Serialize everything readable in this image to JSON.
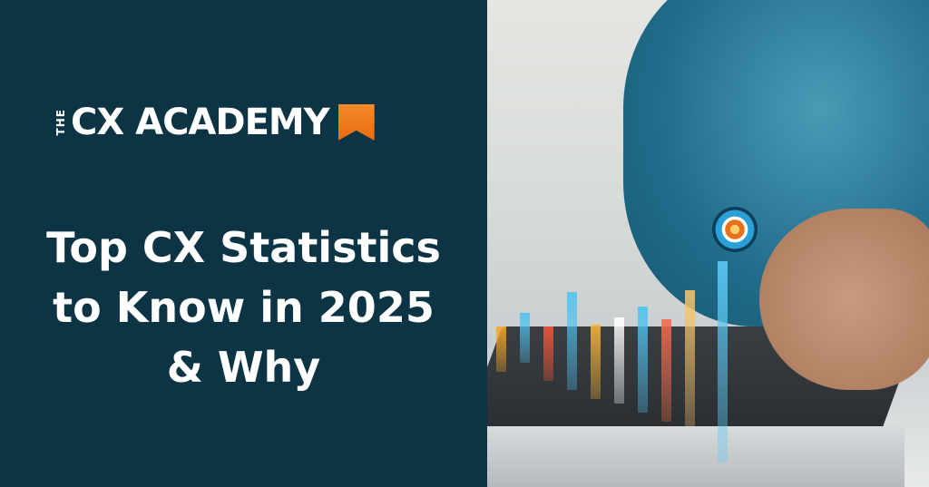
{
  "brand": {
    "prefix": "THE",
    "name": "CX ACADEMY",
    "accent": "#f07d1e",
    "background": "#0c3444"
  },
  "headline": {
    "lines": [
      "Top CX Statistics",
      "to Know in 2025",
      "& Why"
    ]
  },
  "photo": {
    "subject": "hand-touching-holographic-bar-chart-over-laptop"
  }
}
